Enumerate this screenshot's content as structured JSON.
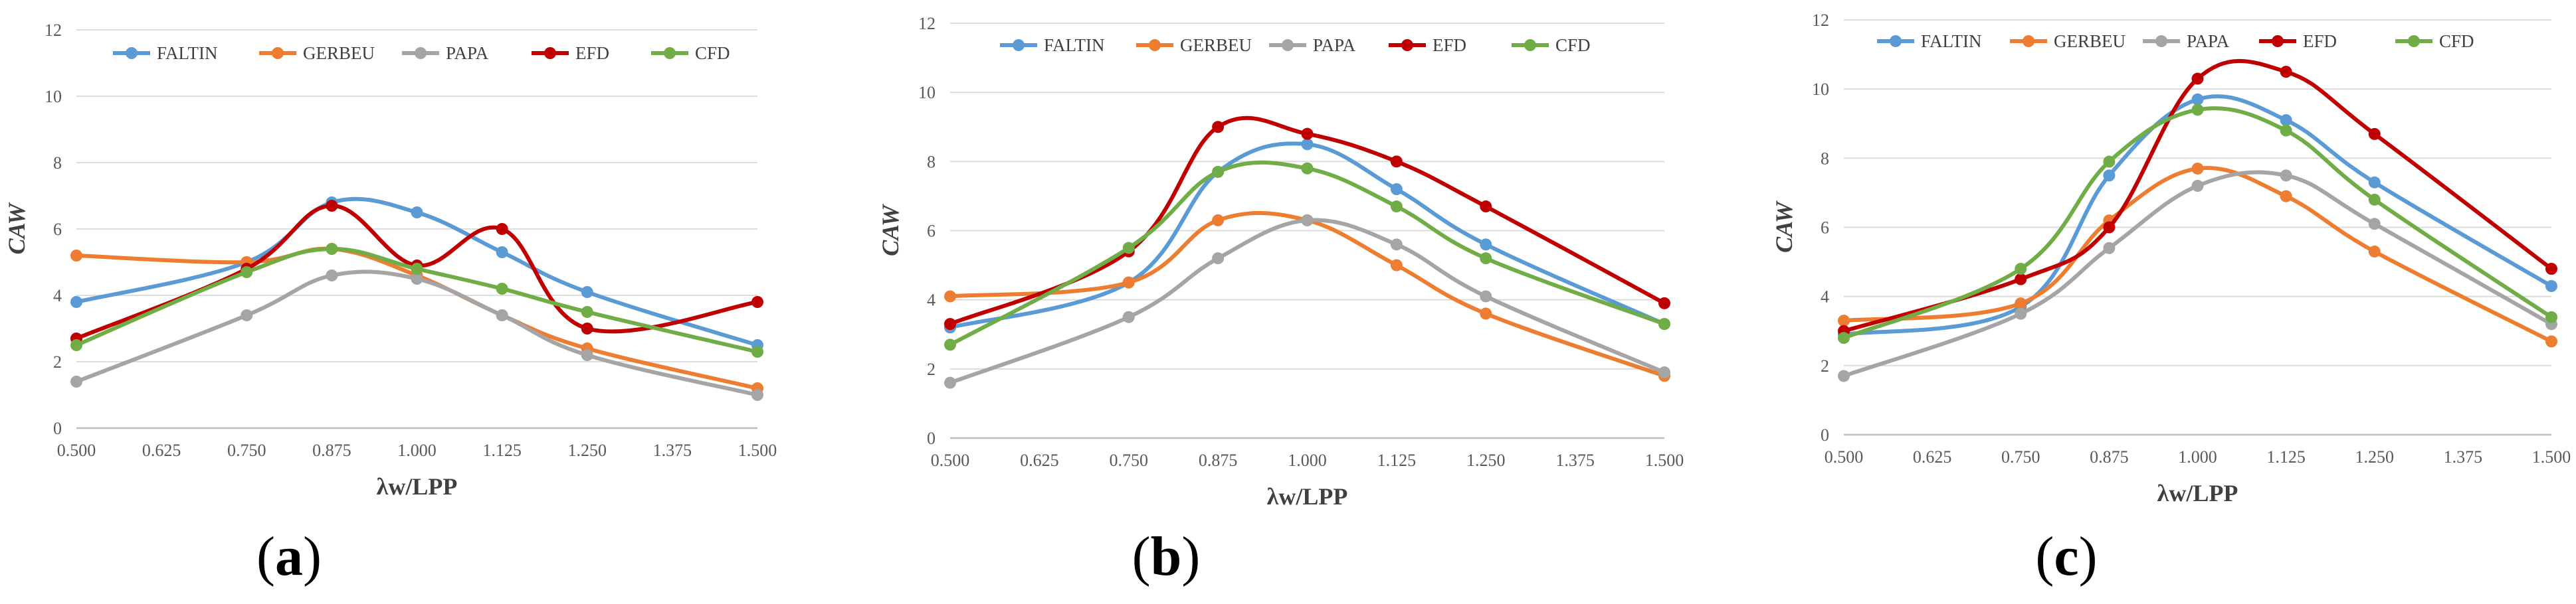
{
  "chart_data": [
    {
      "type": "line",
      "panel_label": "a",
      "xlabel": "λw/LPP",
      "ylabel": "CAW",
      "x_ticks": [
        "0.500",
        "0.625",
        "0.750",
        "0.875",
        "1.000",
        "1.125",
        "1.250",
        "1.375",
        "1.500"
      ],
      "y_ticks": [
        "0",
        "2",
        "4",
        "6",
        "8",
        "10",
        "12"
      ],
      "xlim": [
        0.5,
        1.5
      ],
      "ylim": [
        0,
        12
      ],
      "legend_position": "top",
      "x": [
        0.5,
        0.75,
        0.875,
        1.0,
        1.125,
        1.25,
        1.5
      ],
      "series": [
        {
          "name": "FALTIN",
          "color": "#5B9BD5",
          "values": [
            3.8,
            5.0,
            6.8,
            6.5,
            5.3,
            4.1,
            2.5
          ]
        },
        {
          "name": "GERBEU",
          "color": "#ED7D31",
          "values": [
            5.2,
            5.0,
            5.4,
            4.6,
            3.4,
            2.4,
            1.2
          ]
        },
        {
          "name": "PAPA",
          "color": "#A5A5A5",
          "values": [
            1.4,
            3.4,
            4.6,
            4.5,
            3.4,
            2.2,
            1.0
          ]
        },
        {
          "name": "EFD",
          "color": "#C00000",
          "values": [
            2.7,
            4.8,
            6.7,
            4.9,
            6.0,
            3.0,
            3.8
          ]
        },
        {
          "name": "CFD",
          "color": "#70AD47",
          "values": [
            2.5,
            4.7,
            5.4,
            4.8,
            4.2,
            3.5,
            2.3
          ]
        }
      ]
    },
    {
      "type": "line",
      "panel_label": "b",
      "xlabel": "λw/LPP",
      "ylabel": "CAW",
      "x_ticks": [
        "0.500",
        "0.625",
        "0.750",
        "0.875",
        "1.000",
        "1.125",
        "1.250",
        "1.375",
        "1.500"
      ],
      "y_ticks": [
        "0",
        "2",
        "4",
        "6",
        "8",
        "10",
        "12"
      ],
      "xlim": [
        0.5,
        1.5
      ],
      "ylim": [
        0,
        12
      ],
      "legend_position": "top",
      "x": [
        0.5,
        0.75,
        0.875,
        1.0,
        1.125,
        1.25,
        1.5
      ],
      "series": [
        {
          "name": "FALTIN",
          "color": "#5B9BD5",
          "values": [
            3.2,
            4.5,
            7.7,
            8.5,
            7.2,
            5.6,
            3.3
          ]
        },
        {
          "name": "GERBEU",
          "color": "#ED7D31",
          "values": [
            4.1,
            4.5,
            6.3,
            6.3,
            5.0,
            3.6,
            1.8
          ]
        },
        {
          "name": "PAPA",
          "color": "#A5A5A5",
          "values": [
            1.6,
            3.5,
            5.2,
            6.3,
            5.6,
            4.1,
            1.9
          ]
        },
        {
          "name": "EFD",
          "color": "#C00000",
          "values": [
            3.3,
            5.4,
            9.0,
            8.8,
            8.0,
            6.7,
            3.9
          ]
        },
        {
          "name": "CFD",
          "color": "#70AD47",
          "values": [
            2.7,
            5.5,
            7.7,
            7.8,
            6.7,
            5.2,
            3.3
          ]
        }
      ]
    },
    {
      "type": "line",
      "panel_label": "c",
      "xlabel": "λw/LPP",
      "ylabel": "CAW",
      "x_ticks": [
        "0.500",
        "0.625",
        "0.750",
        "0.875",
        "1.000",
        "1.125",
        "1.250",
        "1.375",
        "1.500"
      ],
      "y_ticks": [
        "0",
        "2",
        "4",
        "6",
        "8",
        "10",
        "12"
      ],
      "xlim": [
        0.5,
        1.5
      ],
      "ylim": [
        0,
        12
      ],
      "legend_position": "top",
      "x": [
        0.5,
        0.75,
        0.875,
        1.0,
        1.125,
        1.25,
        1.5
      ],
      "series": [
        {
          "name": "FALTIN",
          "color": "#5B9BD5",
          "values": [
            2.9,
            3.7,
            7.5,
            9.7,
            9.1,
            7.3,
            4.3
          ]
        },
        {
          "name": "GERBEU",
          "color": "#ED7D31",
          "values": [
            3.3,
            3.8,
            6.2,
            7.7,
            6.9,
            5.3,
            2.7
          ]
        },
        {
          "name": "PAPA",
          "color": "#A5A5A5",
          "values": [
            1.7,
            3.5,
            5.4,
            7.2,
            7.5,
            6.1,
            3.2
          ]
        },
        {
          "name": "EFD",
          "color": "#C00000",
          "values": [
            3.0,
            4.5,
            6.0,
            10.3,
            10.5,
            8.7,
            4.8
          ]
        },
        {
          "name": "CFD",
          "color": "#70AD47",
          "values": [
            2.8,
            4.8,
            7.9,
            9.4,
            8.8,
            6.8,
            3.4
          ]
        }
      ]
    }
  ]
}
